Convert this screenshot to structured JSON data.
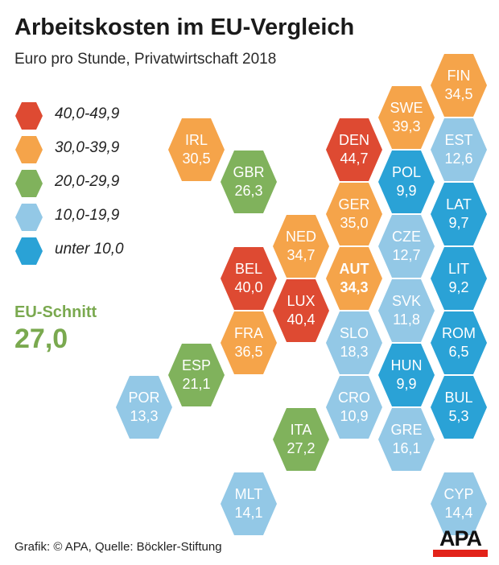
{
  "title": "Arbeitskosten im EU-Vergleich",
  "subtitle": "Euro pro Stunde, Privatwirtschaft 2018",
  "legend": [
    {
      "label": "40,0-49,9",
      "color": "#de4a32"
    },
    {
      "label": "30,0-39,9",
      "color": "#f5a44a"
    },
    {
      "label": "20,0-29,9",
      "color": "#80b25c"
    },
    {
      "label": "10,0-19,9",
      "color": "#93c8e6"
    },
    {
      "label": "unter 10,0",
      "color": "#2aa2d6"
    }
  ],
  "eu_average": {
    "label": "EU-Schnitt",
    "value": "27,0",
    "color": "#7aa94f"
  },
  "countries": [
    {
      "code": "FIN",
      "value": "34,5",
      "color": "#f5a44a"
    },
    {
      "code": "SWE",
      "value": "39,3",
      "color": "#f5a44a"
    },
    {
      "code": "EST",
      "value": "12,6",
      "color": "#93c8e6"
    },
    {
      "code": "IRL",
      "value": "30,5",
      "color": "#f5a44a"
    },
    {
      "code": "DEN",
      "value": "44,7",
      "color": "#de4a32"
    },
    {
      "code": "POL",
      "value": "9,9",
      "color": "#2aa2d6"
    },
    {
      "code": "GBR",
      "value": "26,3",
      "color": "#80b25c"
    },
    {
      "code": "GER",
      "value": "35,0",
      "color": "#f5a44a"
    },
    {
      "code": "LAT",
      "value": "9,7",
      "color": "#2aa2d6"
    },
    {
      "code": "NED",
      "value": "34,7",
      "color": "#f5a44a"
    },
    {
      "code": "CZE",
      "value": "12,7",
      "color": "#93c8e6"
    },
    {
      "code": "BEL",
      "value": "40,0",
      "color": "#de4a32"
    },
    {
      "code": "AUT",
      "value": "34,3",
      "color": "#f5a44a",
      "highlight": true
    },
    {
      "code": "LIT",
      "value": "9,2",
      "color": "#2aa2d6"
    },
    {
      "code": "LUX",
      "value": "40,4",
      "color": "#de4a32"
    },
    {
      "code": "SVK",
      "value": "11,8",
      "color": "#93c8e6"
    },
    {
      "code": "FRA",
      "value": "36,5",
      "color": "#f5a44a"
    },
    {
      "code": "SLO",
      "value": "18,3",
      "color": "#93c8e6"
    },
    {
      "code": "ROM",
      "value": "6,5",
      "color": "#2aa2d6"
    },
    {
      "code": "ESP",
      "value": "21,1",
      "color": "#80b25c"
    },
    {
      "code": "HUN",
      "value": "9,9",
      "color": "#2aa2d6"
    },
    {
      "code": "POR",
      "value": "13,3",
      "color": "#93c8e6"
    },
    {
      "code": "CRO",
      "value": "10,9",
      "color": "#93c8e6"
    },
    {
      "code": "BUL",
      "value": "5,3",
      "color": "#2aa2d6"
    },
    {
      "code": "ITA",
      "value": "27,2",
      "color": "#80b25c"
    },
    {
      "code": "GRE",
      "value": "16,1",
      "color": "#93c8e6"
    },
    {
      "code": "MLT",
      "value": "14,1",
      "color": "#93c8e6"
    },
    {
      "code": "CYP",
      "value": "14,4",
      "color": "#93c8e6"
    }
  ],
  "credit": "Grafik: © APA, Quelle: Böckler-Stiftung",
  "logo_text": "APA"
}
